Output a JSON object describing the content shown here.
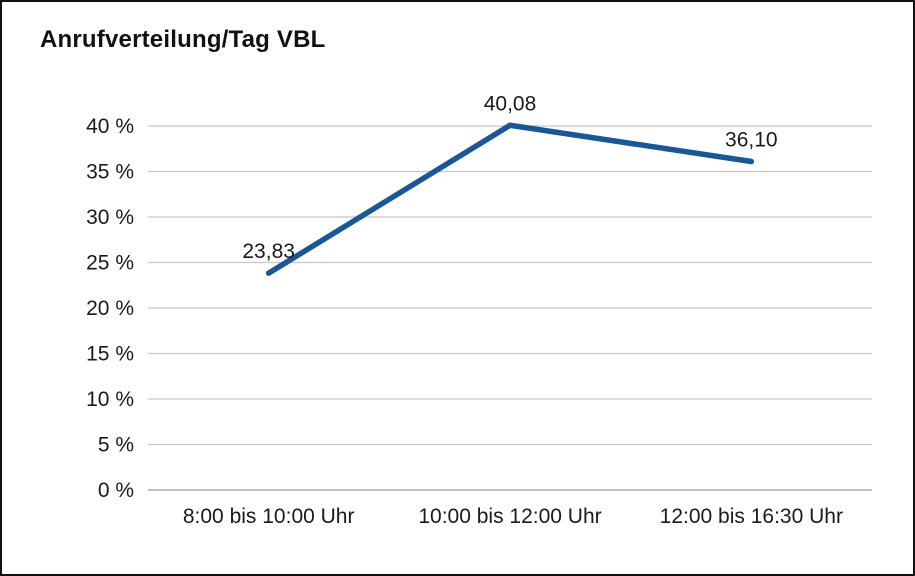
{
  "page": {
    "background": "#ffffff",
    "frame_border_color": "#121212"
  },
  "chart_data": {
    "type": "line",
    "title": "Anrufverteilung/Tag VBL",
    "categories": [
      "8:00 bis 10:00 Uhr",
      "10:00 bis 12:00 Uhr",
      "12:00 bis 16:30 Uhr"
    ],
    "series": [
      {
        "name": "Anrufverteilung/Tag VBL",
        "values": [
          23.83,
          40.08,
          36.1
        ],
        "labels": [
          "23,83",
          "40,08",
          "36,10"
        ],
        "color": "#1a5796"
      }
    ],
    "xlabel": "",
    "ylabel": "",
    "ylim": [
      0,
      40
    ],
    "ytick_step": 5,
    "ytick_suffix": " %",
    "grid": "horizontal",
    "gridline_color": "#c6c6c6",
    "axis_color": "#9a9a9a",
    "label_color": "#1a1a1a",
    "legend": "none"
  }
}
